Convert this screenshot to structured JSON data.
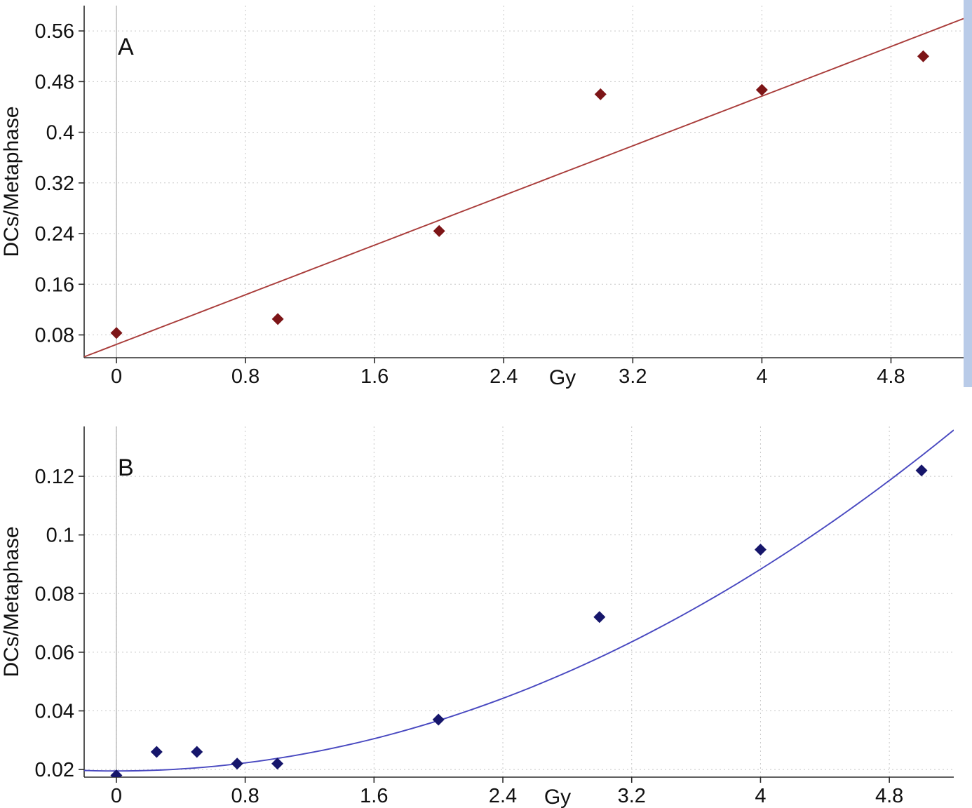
{
  "figure": {
    "background": "#ffffff",
    "right_strip_color": "#b9cbe8"
  },
  "chart_data": [
    {
      "panel_label": "A",
      "type": "scatter",
      "xlabel": "Gy",
      "ylabel": "DCs/Metaphase",
      "xlim": [
        -0.2,
        5.25
      ],
      "ylim": [
        0.044,
        0.6
      ],
      "xticks": [
        "0",
        "0.8",
        "1.6",
        "2.4",
        "3.2",
        "4",
        "4.8"
      ],
      "yticks": [
        "0.08",
        "0.16",
        "0.24",
        "0.32",
        "0.4",
        "0.48",
        "0.56"
      ],
      "grid": true,
      "legend": "none",
      "marker": "diamond",
      "marker_color": "#7d1517",
      "trend_color": "#a93c3a",
      "trend": {
        "kind": "linear",
        "coeffs": [
          0.065,
          0.098
        ]
      },
      "points": [
        [
          0,
          0.083
        ],
        [
          1,
          0.105
        ],
        [
          2,
          0.244
        ],
        [
          3,
          0.46
        ],
        [
          4,
          0.467
        ],
        [
          5,
          0.52
        ]
      ]
    },
    {
      "panel_label": "B",
      "type": "scatter",
      "xlabel": "Gy",
      "ylabel": "DCs/Metaphase",
      "xlim": [
        -0.2,
        5.2
      ],
      "ylim": [
        0.0174,
        0.137
      ],
      "xticks": [
        "0",
        "0.8",
        "1.6",
        "2.4",
        "3.2",
        "4",
        "4.8"
      ],
      "yticks": [
        "0.02",
        "0.04",
        "0.06",
        "0.08",
        "0.1",
        "0.12"
      ],
      "grid": true,
      "legend": "none",
      "marker": "diamond",
      "marker_color": "#16166b",
      "trend_color": "#4848c0",
      "trend": {
        "kind": "quadratic",
        "coeffs": [
          0.0195,
          0,
          0.0043
        ]
      },
      "points": [
        [
          0,
          0.018
        ],
        [
          0.25,
          0.026
        ],
        [
          0.5,
          0.026
        ],
        [
          0.75,
          0.022
        ],
        [
          1,
          0.022
        ],
        [
          2,
          0.037
        ],
        [
          3,
          0.072
        ],
        [
          4,
          0.095
        ],
        [
          5,
          0.122
        ]
      ]
    }
  ]
}
